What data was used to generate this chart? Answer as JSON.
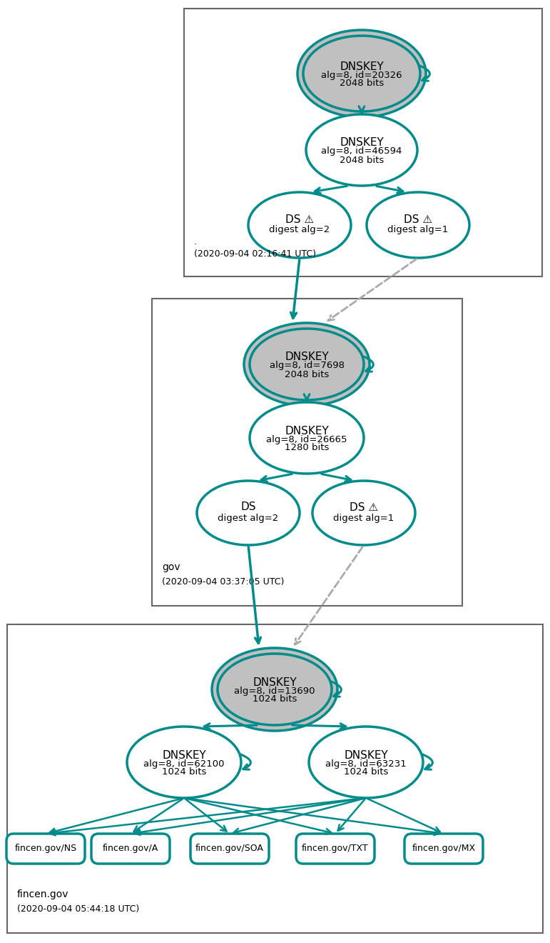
{
  "teal": "#008B8B",
  "gray_fill": "#C0C0C0",
  "white_fill": "#FFFFFF",
  "dashed_color": "#AAAAAA",
  "bg_color": "#FFFFFF",
  "box_edge": "#666666",
  "s1_timestamp_line1": ".",
  "s1_timestamp_line2": "(2020-09-04 02:16:41 UTC)",
  "s2_label": "gov",
  "s2_timestamp": "(2020-09-04 03:37:05 UTC)",
  "s3_label": "fincen.gov",
  "s3_timestamp": "(2020-09-04 05:44:18 UTC)",
  "ksk1_text": "DNSKEY\nalg=8, id=20326\n2048 bits",
  "zsk1_text": "DNSKEY\nalg=8, id=46594\n2048 bits",
  "ds1a_text": "DS",
  "ds1a_sub": "digest alg=2",
  "ds1a_warn": true,
  "ds1b_text": "DS",
  "ds1b_sub": "digest alg=1",
  "ds1b_warn": true,
  "ksk2_text": "DNSKEY\nalg=8, id=7698\n2048 bits",
  "zsk2_text": "DNSKEY\nalg=8, id=26665\n1280 bits",
  "ds2a_text": "DS",
  "ds2a_sub": "digest alg=2",
  "ds2a_warn": false,
  "ds2b_text": "DS",
  "ds2b_sub": "digest alg=1",
  "ds2b_warn": true,
  "ksk3_text": "DNSKEY\nalg=8, id=13690\n1024 bits",
  "zsk3a_text": "DNSKEY\nalg=8, id=62100\n1024 bits",
  "zsk3b_text": "DNSKEY\nalg=8, id=63231\n1024 bits",
  "records": [
    "fincen.gov/NS",
    "fincen.gov/A",
    "fincen.gov/SOA",
    "fincen.gov/TXT",
    "fincen.gov/MX"
  ]
}
